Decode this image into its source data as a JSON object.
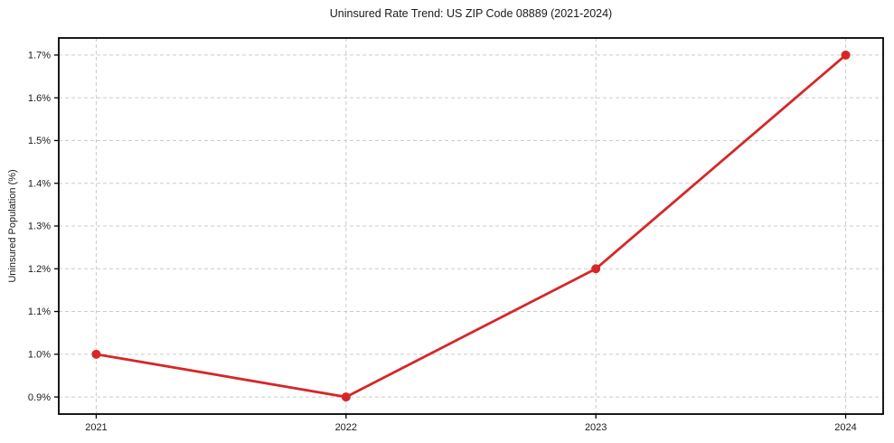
{
  "chart_data": {
    "type": "line",
    "title": "Uninsured Rate Trend: US ZIP Code 08889 (2021-2024)",
    "xlabel": "",
    "ylabel": "Uninsured Population (%)",
    "x": [
      2021,
      2022,
      2023,
      2024
    ],
    "values": [
      1.0,
      0.9,
      1.2,
      1.7
    ],
    "x_tick_labels": [
      "2021",
      "2022",
      "2023",
      "2024"
    ],
    "y_ticks": [
      0.9,
      1.0,
      1.1,
      1.2,
      1.3,
      1.4,
      1.5,
      1.6,
      1.7
    ],
    "y_tick_labels": [
      "0.9%",
      "1.0%",
      "1.1%",
      "1.2%",
      "1.3%",
      "1.4%",
      "1.5%",
      "1.6%",
      "1.7%"
    ],
    "xlim": [
      2020.85,
      2024.15
    ],
    "ylim": [
      0.86,
      1.74
    ],
    "grid": true,
    "legend": false,
    "marker": "circle",
    "line_color": "#d62728",
    "grid_color": "#cccccc",
    "axis_color": "#000000",
    "text_color": "#1a1a1a",
    "background": "#ffffff"
  }
}
